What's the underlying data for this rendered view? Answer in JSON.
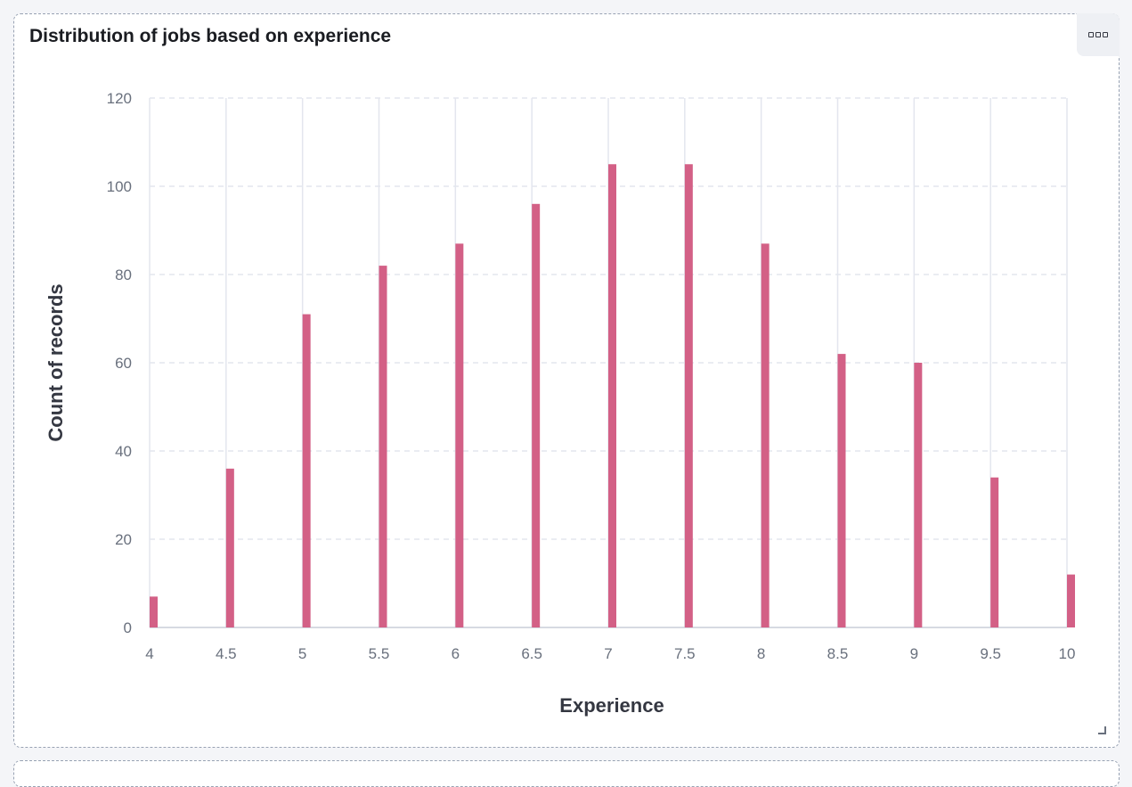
{
  "panel": {
    "title": "Distribution of jobs based on experience",
    "menu_icon": "ellipsis-icon",
    "resize_icon": "resize-corner-icon"
  },
  "colors": {
    "bar": "#d36086",
    "grid": "#e3e6ee",
    "axis": "#c9ced9"
  },
  "chart_data": {
    "type": "bar",
    "title": "Distribution of jobs based on experience",
    "xlabel": "Experience",
    "ylabel": "Count of records",
    "x": [
      4,
      4.5,
      5,
      5.5,
      6,
      6.5,
      7,
      7.5,
      8,
      8.5,
      9,
      9.5,
      10
    ],
    "values": [
      7,
      36,
      71,
      82,
      87,
      96,
      105,
      105,
      87,
      62,
      60,
      34,
      12
    ],
    "x_ticks": [
      "4",
      "4.5",
      "5",
      "5.5",
      "6",
      "6.5",
      "7",
      "7.5",
      "8",
      "8.5",
      "9",
      "9.5",
      "10"
    ],
    "y_ticks": [
      "0",
      "20",
      "40",
      "60",
      "80",
      "100",
      "120"
    ],
    "xlim": [
      4,
      10
    ],
    "ylim": [
      0,
      120
    ],
    "grid": true,
    "legend": "none"
  }
}
